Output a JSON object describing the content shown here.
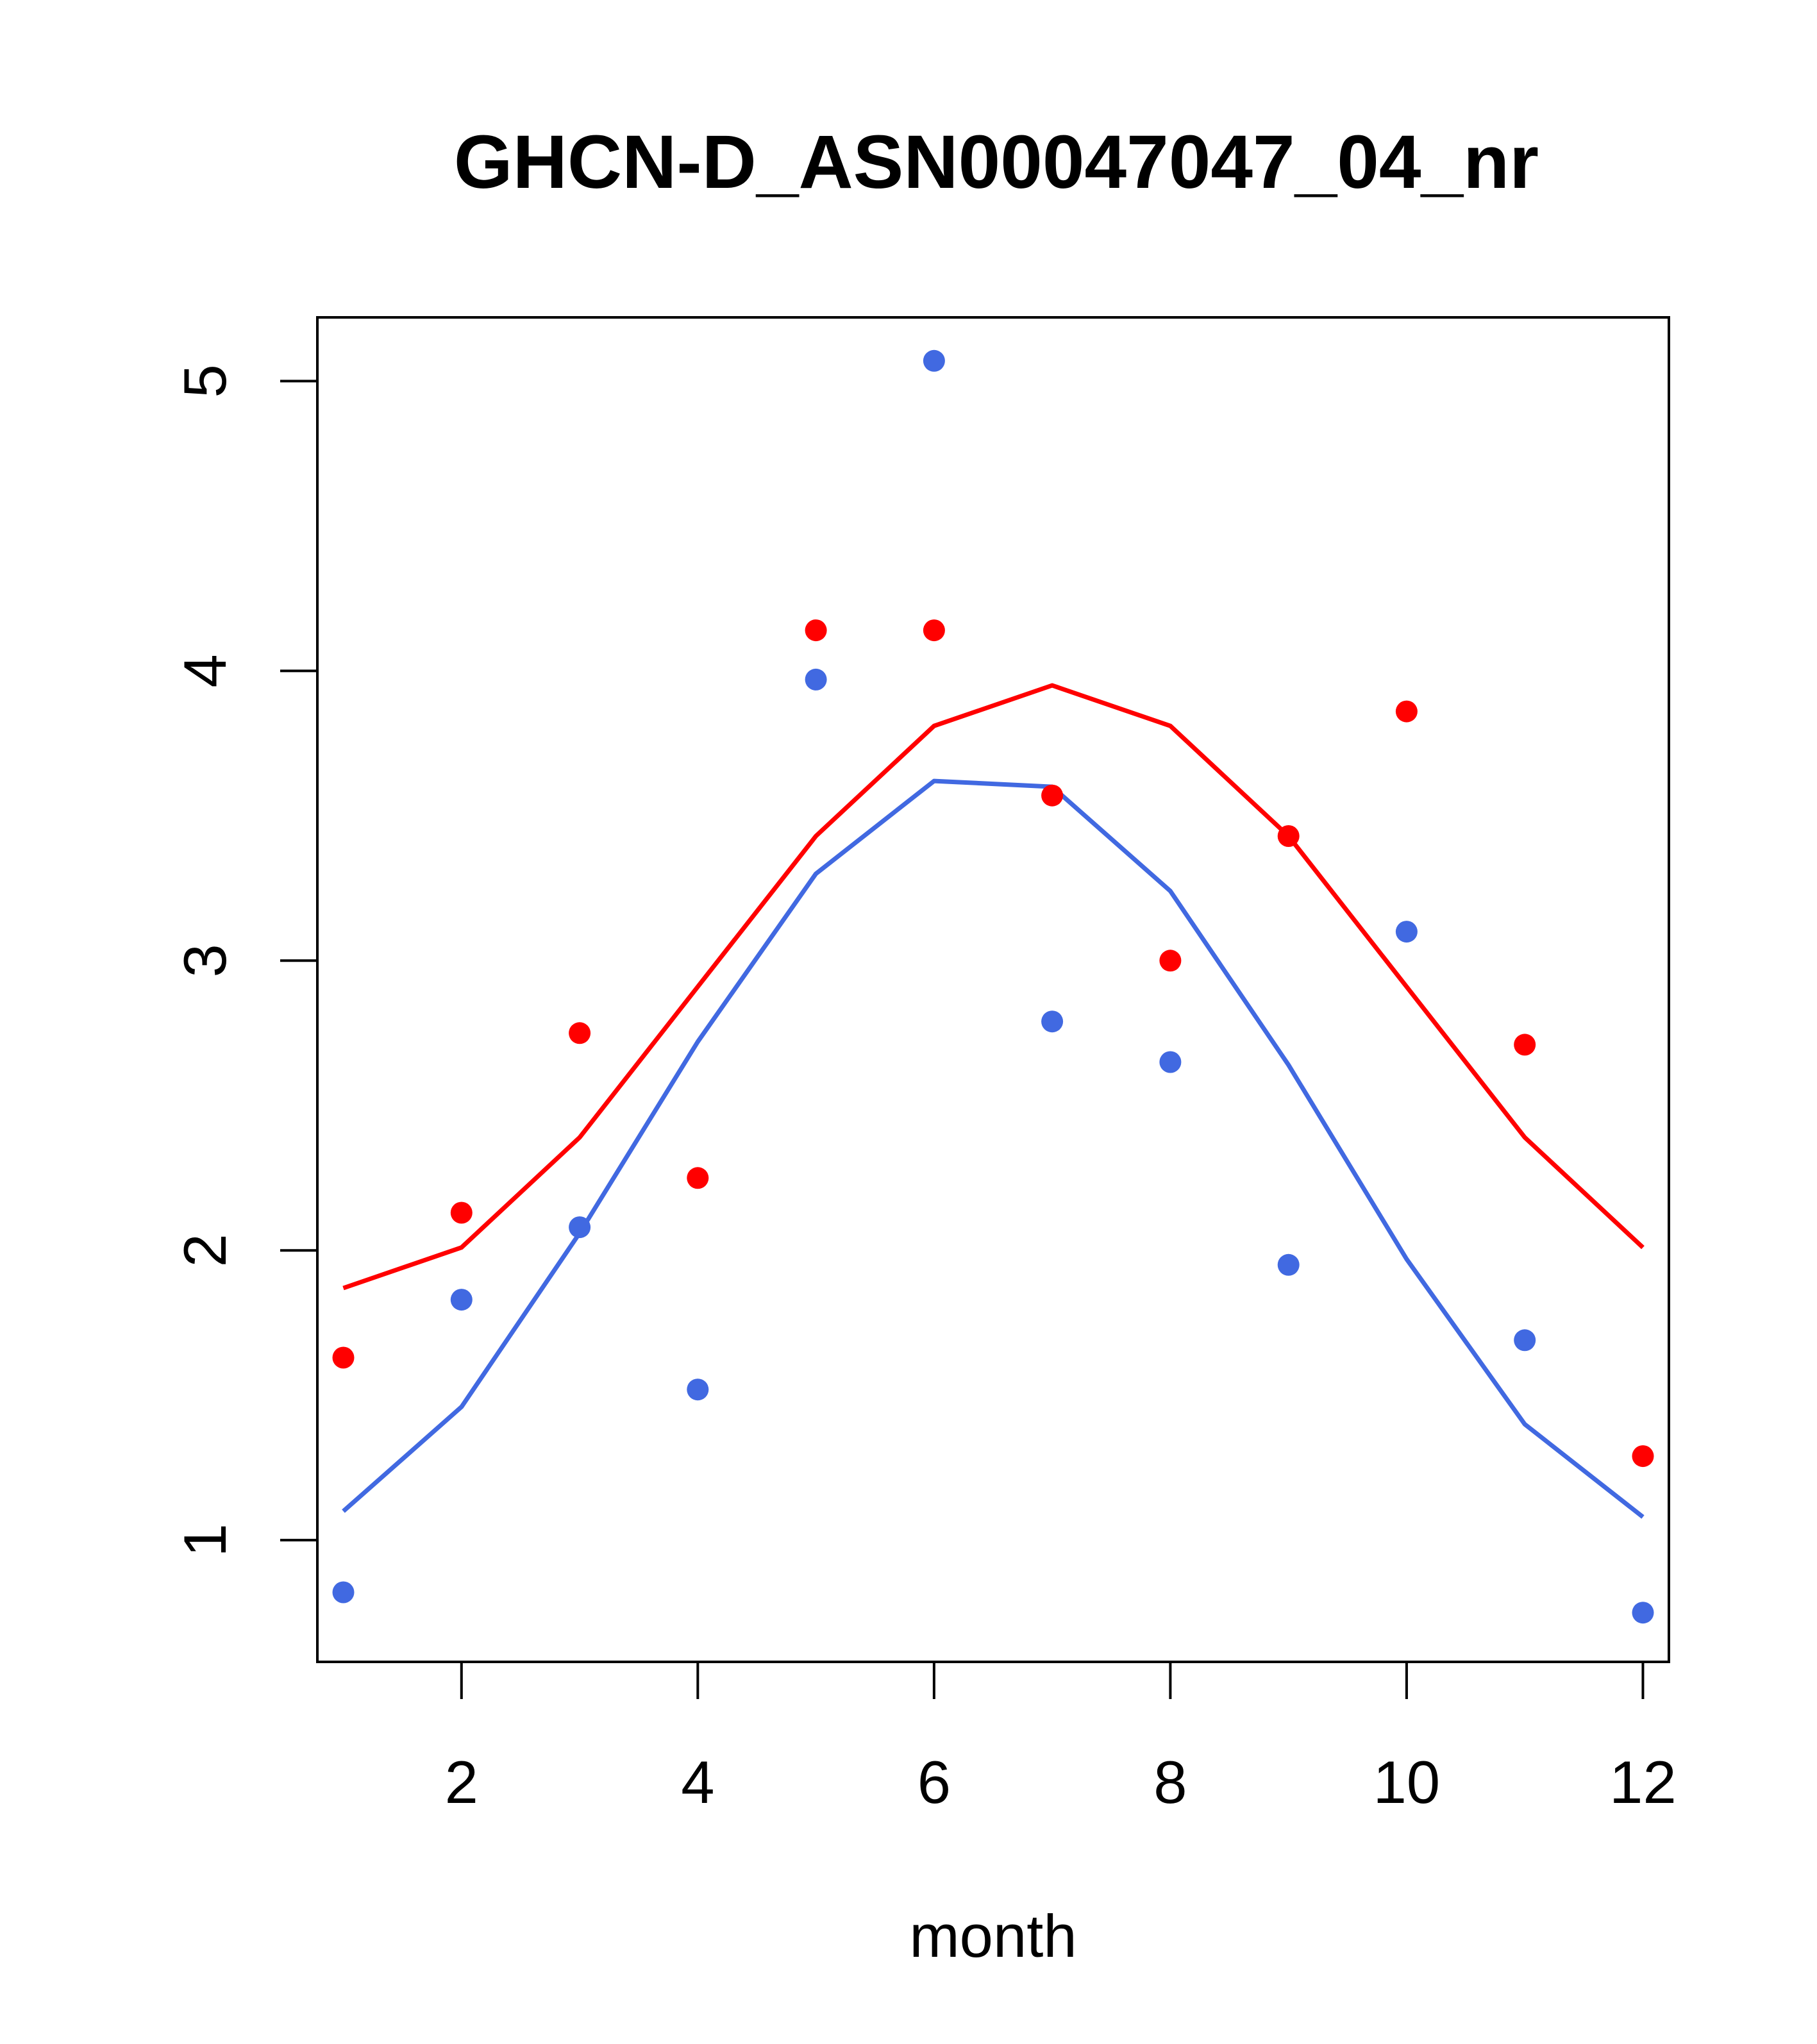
{
  "chart_data": {
    "type": "scatter",
    "title": "GHCN-D_ASN00047047_04_nr",
    "xlabel": "month",
    "ylabel": "",
    "xlim": [
      0.78,
      12.22
    ],
    "ylim": [
      0.58,
      5.22
    ],
    "xticks": [
      2,
      4,
      6,
      8,
      10,
      12
    ],
    "yticks": [
      1,
      2,
      3,
      4,
      5
    ],
    "grid": false,
    "legend": "none",
    "x": [
      1,
      2,
      3,
      4,
      5,
      6,
      7,
      8,
      9,
      10,
      11,
      12
    ],
    "series": [
      {
        "color": "#ff0000",
        "points": [
          1.63,
          2.13,
          2.75,
          2.25,
          4.14,
          4.14,
          3.57,
          3.0,
          3.43,
          3.86,
          2.71,
          1.29
        ],
        "line": [
          1.87,
          2.01,
          2.39,
          2.91,
          3.43,
          3.81,
          3.95,
          3.81,
          3.43,
          2.91,
          2.39,
          2.01
        ]
      },
      {
        "color": "#4169e1",
        "points": [
          0.82,
          1.83,
          2.08,
          1.52,
          3.97,
          5.07,
          2.79,
          2.65,
          1.95,
          3.1,
          1.69,
          0.75
        ],
        "line": [
          1.1,
          1.46,
          2.06,
          2.72,
          3.3,
          3.62,
          3.6,
          3.24,
          2.64,
          1.97,
          1.4,
          1.08
        ]
      }
    ]
  }
}
